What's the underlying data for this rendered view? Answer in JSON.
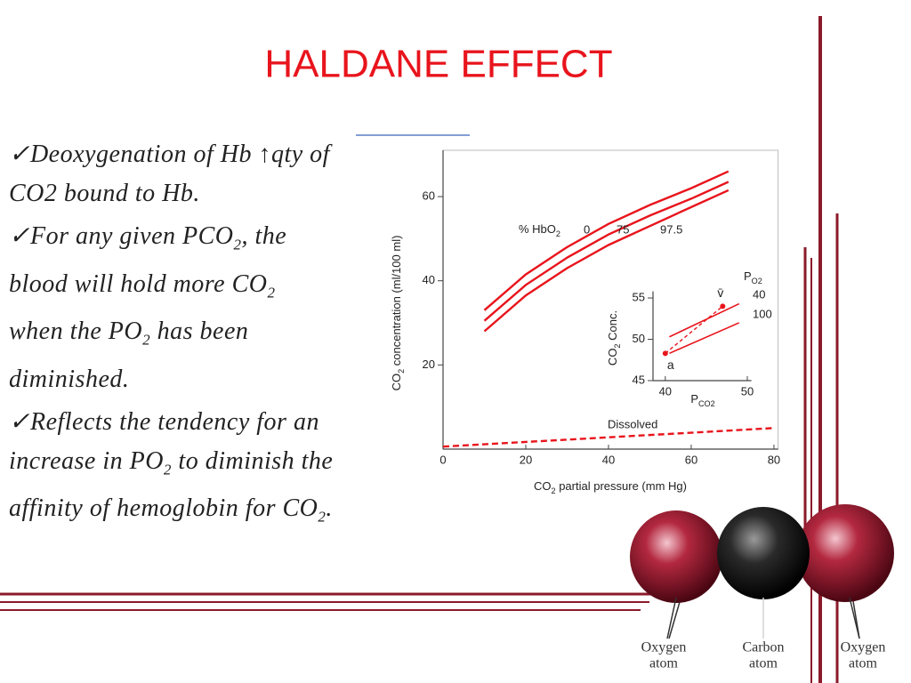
{
  "slide": {
    "title": "HALDANE EFFECT",
    "bullets": [
      [
        "✓Deoxygenation of Hb ↑qty of CO2 bound to Hb."
      ],
      [
        "✓For any given PCO",
        "2",
        ", the blood will hold more CO",
        "2",
        " when the PO",
        "2",
        " has been diminished."
      ],
      [
        "✓Reflects the tendency for an increase in PO",
        "2",
        " to diminish the affinity of hemoglobin for CO",
        "2",
        "."
      ]
    ]
  },
  "chart_data": [
    {
      "type": "line",
      "annotation": [
        "% HbO",
        "2"
      ],
      "x_label": [
        "CO",
        "2",
        " partial pressure (mm Hg)"
      ],
      "y_label": [
        "CO",
        "2",
        " concentration (ml/100 ml)"
      ],
      "xlim": [
        0,
        81
      ],
      "ylim": [
        0,
        71
      ],
      "xticks": [
        0,
        20,
        40,
        60,
        80
      ],
      "yticks": [
        20,
        40,
        60
      ],
      "series": [
        {
          "name": "0",
          "color": "#e8141c",
          "x": [
            10,
            20,
            30,
            40,
            50,
            60,
            69
          ],
          "values": [
            33,
            41.5,
            48,
            53.5,
            58,
            62,
            66
          ]
        },
        {
          "name": "75",
          "color": "#e8141c",
          "x": [
            10,
            20,
            30,
            40,
            50,
            60,
            69
          ],
          "values": [
            30.5,
            39,
            45.5,
            51,
            55.5,
            59.5,
            63.5
          ]
        },
        {
          "name": "97.5",
          "color": "#e8141c",
          "x": [
            10,
            20,
            30,
            40,
            50,
            60,
            69
          ],
          "values": [
            28,
            36.5,
            43,
            48.5,
            53,
            57.5,
            61.5
          ]
        },
        {
          "name": "Dissolved",
          "color": "#e8141c",
          "dashed": true,
          "x": [
            0,
            80
          ],
          "values": [
            0.6,
            5
          ]
        }
      ]
    },
    {
      "type": "line",
      "legend_title": [
        "P",
        "O2"
      ],
      "x_label": [
        "P",
        "CO2"
      ],
      "y_label": [
        "CO",
        "2",
        " Conc."
      ],
      "xlim": [
        38.5,
        50.5
      ],
      "ylim": [
        45,
        55.8
      ],
      "xticks": [
        40,
        50
      ],
      "yticks": [
        45,
        50,
        55
      ],
      "series": [
        {
          "name": "40",
          "color": "#e8141c",
          "x": [
            40.5,
            49
          ],
          "values": [
            50.3,
            54.3
          ]
        },
        {
          "name": "100",
          "color": "#e8141c",
          "x": [
            40.5,
            49
          ],
          "values": [
            48.3,
            52
          ]
        }
      ],
      "points": {
        "labels": [
          "a",
          "v̄"
        ],
        "x": [
          40,
          47
        ],
        "values": [
          48.3,
          54
        ]
      }
    }
  ],
  "molecule": {
    "labels": [
      [
        "Oxygen",
        "atom"
      ],
      [
        "Carbon",
        "atom"
      ],
      [
        "Oxygen",
        "atom"
      ]
    ]
  }
}
